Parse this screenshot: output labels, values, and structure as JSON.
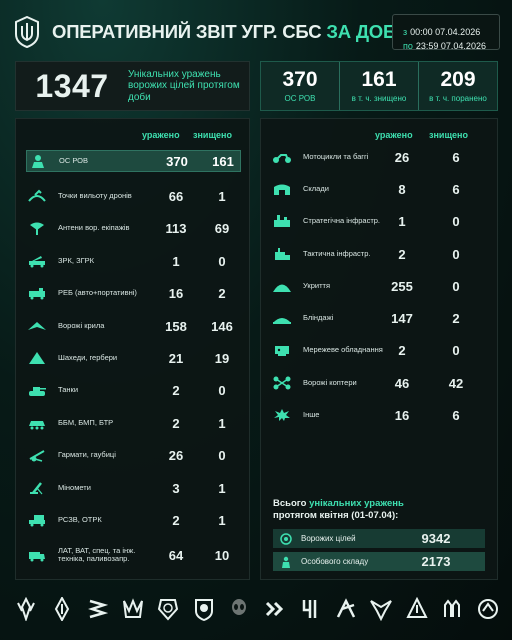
{
  "header": {
    "title_main": "ОПЕРАТИВНИЙ ЗВІТ УГР. СБС",
    "title_accent": "ЗА ДОБУ",
    "from_label": "з",
    "from_value": "00:00 07.04.2026",
    "to_label": "по",
    "to_value": "23:59 07.04.2026"
  },
  "summary": {
    "total": "1347",
    "total_desc": "Унікальних уражень ворожих цілей протягом доби",
    "stats": [
      {
        "value": "370",
        "label": "ОС РОВ"
      },
      {
        "value": "161",
        "label": "в т. ч. знищено"
      },
      {
        "value": "209",
        "label": "в т. ч. поранено"
      }
    ]
  },
  "columns": {
    "hit": "уражено",
    "destroyed": "знищено"
  },
  "left_rows": [
    {
      "label": "ОС РОВ",
      "hit": "370",
      "destroyed": "161",
      "icon": "soldier-icon"
    },
    {
      "label": "Точки вильоту дронів",
      "hit": "66",
      "destroyed": "1",
      "icon": "drone-launch-icon"
    },
    {
      "label": "Антени вор. екіпажів",
      "hit": "113",
      "destroyed": "69",
      "icon": "antenna-icon"
    },
    {
      "label": "ЗРК, ЗГРК",
      "hit": "1",
      "destroyed": "0",
      "icon": "sam-icon"
    },
    {
      "label": "РЕБ (авто+портативні)",
      "hit": "16",
      "destroyed": "2",
      "icon": "ew-icon"
    },
    {
      "label": "Ворожі крила",
      "hit": "158",
      "destroyed": "146",
      "icon": "wing-icon"
    },
    {
      "label": "Шахеди, гербери",
      "hit": "21",
      "destroyed": "19",
      "icon": "shahed-icon"
    },
    {
      "label": "Танки",
      "hit": "2",
      "destroyed": "0",
      "icon": "tank-icon"
    },
    {
      "label": "ББМ, БМП, БТР",
      "hit": "2",
      "destroyed": "1",
      "icon": "apc-icon"
    },
    {
      "label": "Гармати, гаубиці",
      "hit": "26",
      "destroyed": "0",
      "icon": "howitzer-icon"
    },
    {
      "label": "Міномети",
      "hit": "3",
      "destroyed": "1",
      "icon": "mortar-icon"
    },
    {
      "label": "РСЗВ, ОТРК",
      "hit": "2",
      "destroyed": "1",
      "icon": "mlrs-icon"
    },
    {
      "label": "ЛАТ, ВАТ, спец. та інж. техніка, паливозапр.",
      "hit": "64",
      "destroyed": "10",
      "icon": "truck-icon"
    }
  ],
  "right_rows": [
    {
      "label": "Мотоцикли та баггі",
      "hit": "26",
      "destroyed": "6",
      "icon": "motorcycle-icon"
    },
    {
      "label": "Склади",
      "hit": "8",
      "destroyed": "6",
      "icon": "warehouse-icon"
    },
    {
      "label": "Стратегічна інфрастр.",
      "hit": "1",
      "destroyed": "0",
      "icon": "strategic-infra-icon"
    },
    {
      "label": "Тактична інфрастр.",
      "hit": "2",
      "destroyed": "0",
      "icon": "tactical-infra-icon"
    },
    {
      "label": "Укриття",
      "hit": "255",
      "destroyed": "0",
      "icon": "shelter-icon"
    },
    {
      "label": "Бліндажі",
      "hit": "147",
      "destroyed": "2",
      "icon": "dugout-icon"
    },
    {
      "label": "Мережеве обладнання",
      "hit": "2",
      "destroyed": "0",
      "icon": "network-icon"
    },
    {
      "label": "Ворожі коптери",
      "hit": "46",
      "destroyed": "42",
      "icon": "copter-icon"
    },
    {
      "label": "Інше",
      "hit": "16",
      "destroyed": "6",
      "icon": "other-icon"
    }
  ],
  "monthly": {
    "title_prefix": "Всього",
    "title_accent": "унікальних уражень",
    "title_suffix": "протягом квітня (01-07.04):",
    "targets_label": "Ворожих цілей",
    "targets_value": "9342",
    "personnel_label": "Особового складу",
    "personnel_value": "2173"
  },
  "emblems": [
    "emblem-1",
    "emblem-2",
    "emblem-3",
    "emblem-4",
    "emblem-5",
    "emblem-6",
    "emblem-7",
    "emblem-8",
    "emblem-9",
    "emblem-10",
    "emblem-11",
    "emblem-12",
    "emblem-13",
    "emblem-14"
  ],
  "colors": {
    "accent": "#3ee0b0",
    "highlight": "#1e4a3f",
    "panel": "#0d1615"
  }
}
